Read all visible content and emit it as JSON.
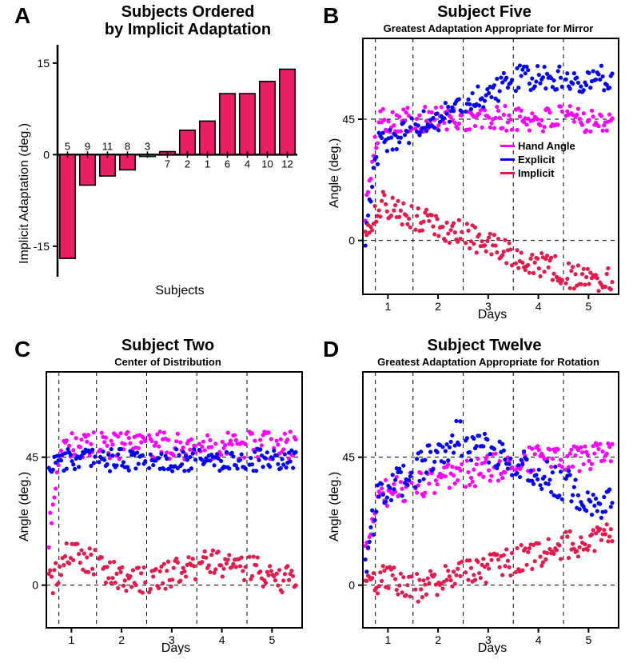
{
  "colors": {
    "bar_fill": "#e91e63",
    "bar_stroke": "#000000",
    "hand_angle": "#ff00ff",
    "explicit": "#0000ff",
    "implicit": "#e6194b",
    "grid": "#000000",
    "axis": "#000000",
    "bg": "#ffffff"
  },
  "panelA": {
    "letter": "A",
    "title": "Subjects Ordered\nby Implicit Adaptation",
    "ylabel": "Implicit Adaptation (deg.)",
    "xlabel": "Subjects",
    "yticks": [
      -15,
      0,
      15
    ],
    "subject_labels": [
      "5",
      "9",
      "11",
      "8",
      "3",
      "7",
      "2",
      "1",
      "6",
      "4",
      "10",
      "12"
    ],
    "values": [
      -17,
      -5,
      -3.5,
      -2.5,
      -0.3,
      0.5,
      4,
      5.5,
      10,
      10,
      12,
      14
    ],
    "label_fontsize": 13
  },
  "panelB": {
    "letter": "B",
    "title": "Subject Five",
    "subtitle": "Greatest Adaptation Appropriate for Mirror",
    "ylabel": "Angle (deg.)",
    "xlabel": "Days",
    "xticks": [
      1,
      2,
      3,
      4,
      5
    ],
    "yticks": [
      0,
      45
    ],
    "xlim": [
      0.5,
      5.6
    ],
    "ylim": [
      -20,
      75
    ],
    "vgrid_extra": [
      0.75,
      1.5,
      2.5,
      3.5,
      4.5
    ],
    "hgrid": [
      0,
      45
    ],
    "legend": [
      {
        "label": "Hand Angle",
        "color": "#ff00ff"
      },
      {
        "label": "Explicit",
        "color": "#0000ff"
      },
      {
        "label": "Implicit",
        "color": "#e6194b"
      }
    ]
  },
  "panelC": {
    "letter": "C",
    "title": "Subject Two",
    "subtitle": "Center of Distribution",
    "ylabel": "Angle (deg.)",
    "xlabel": "Days",
    "xticks": [
      1,
      2,
      3,
      4,
      5
    ],
    "yticks": [
      0,
      45
    ],
    "xlim": [
      0.5,
      5.6
    ],
    "ylim": [
      -15,
      75
    ],
    "vgrid_extra": [
      0.75,
      1.5,
      2.5,
      3.5,
      4.5
    ],
    "hgrid": [
      0,
      45
    ]
  },
  "panelD": {
    "letter": "D",
    "title": "Subject Twelve",
    "subtitle": "Greatest Adaptation Appropriate for Rotation",
    "ylabel": "Angle (deg.)",
    "xlabel": "Days",
    "xticks": [
      1,
      2,
      3,
      4,
      5
    ],
    "yticks": [
      0,
      45
    ],
    "xlim": [
      0.5,
      5.6
    ],
    "ylim": [
      -15,
      75
    ],
    "vgrid_extra": [
      0.75,
      1.5,
      2.5,
      3.5,
      4.5
    ],
    "hgrid": [
      0,
      45
    ]
  },
  "scatter_marker_radius": 2.6,
  "title_fontsize": 20,
  "subtitle_fontsize": 13,
  "label_fontsize": 16,
  "tick_fontsize": 14
}
